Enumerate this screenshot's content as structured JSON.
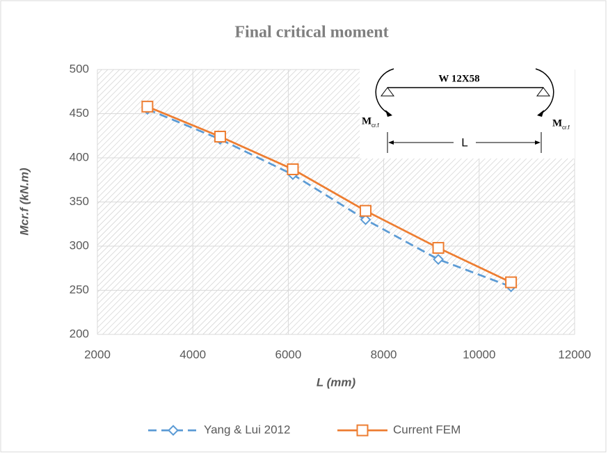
{
  "chart_data": {
    "type": "line",
    "title": "Final critical moment",
    "x_label": "L (mm)",
    "y_label": "Mcr.f (kN.m)",
    "x": [
      3048,
      4572,
      6096,
      7620,
      9144,
      10668
    ],
    "series": [
      {
        "name": "Yang & Lui 2012",
        "color": "#5b9bd5",
        "dashed": true,
        "marker": "diamond",
        "values": [
          455,
          421,
          381,
          330,
          285,
          254
        ]
      },
      {
        "name": "Current FEM",
        "color": "#ed7d31",
        "dashed": false,
        "marker": "square",
        "values": [
          458,
          424,
          387,
          340,
          298,
          259
        ]
      }
    ],
    "xlim": [
      2000,
      12000
    ],
    "xticks": [
      2000,
      4000,
      6000,
      8000,
      10000,
      12000
    ],
    "ylim": [
      200,
      500
    ],
    "yticks": [
      200,
      250,
      300,
      350,
      400,
      450,
      500
    ],
    "grid": true,
    "legend": "bottom",
    "inset": {
      "section": "W 12X58",
      "moment": "M",
      "moment_sub": "cr.f",
      "span": "L"
    }
  }
}
